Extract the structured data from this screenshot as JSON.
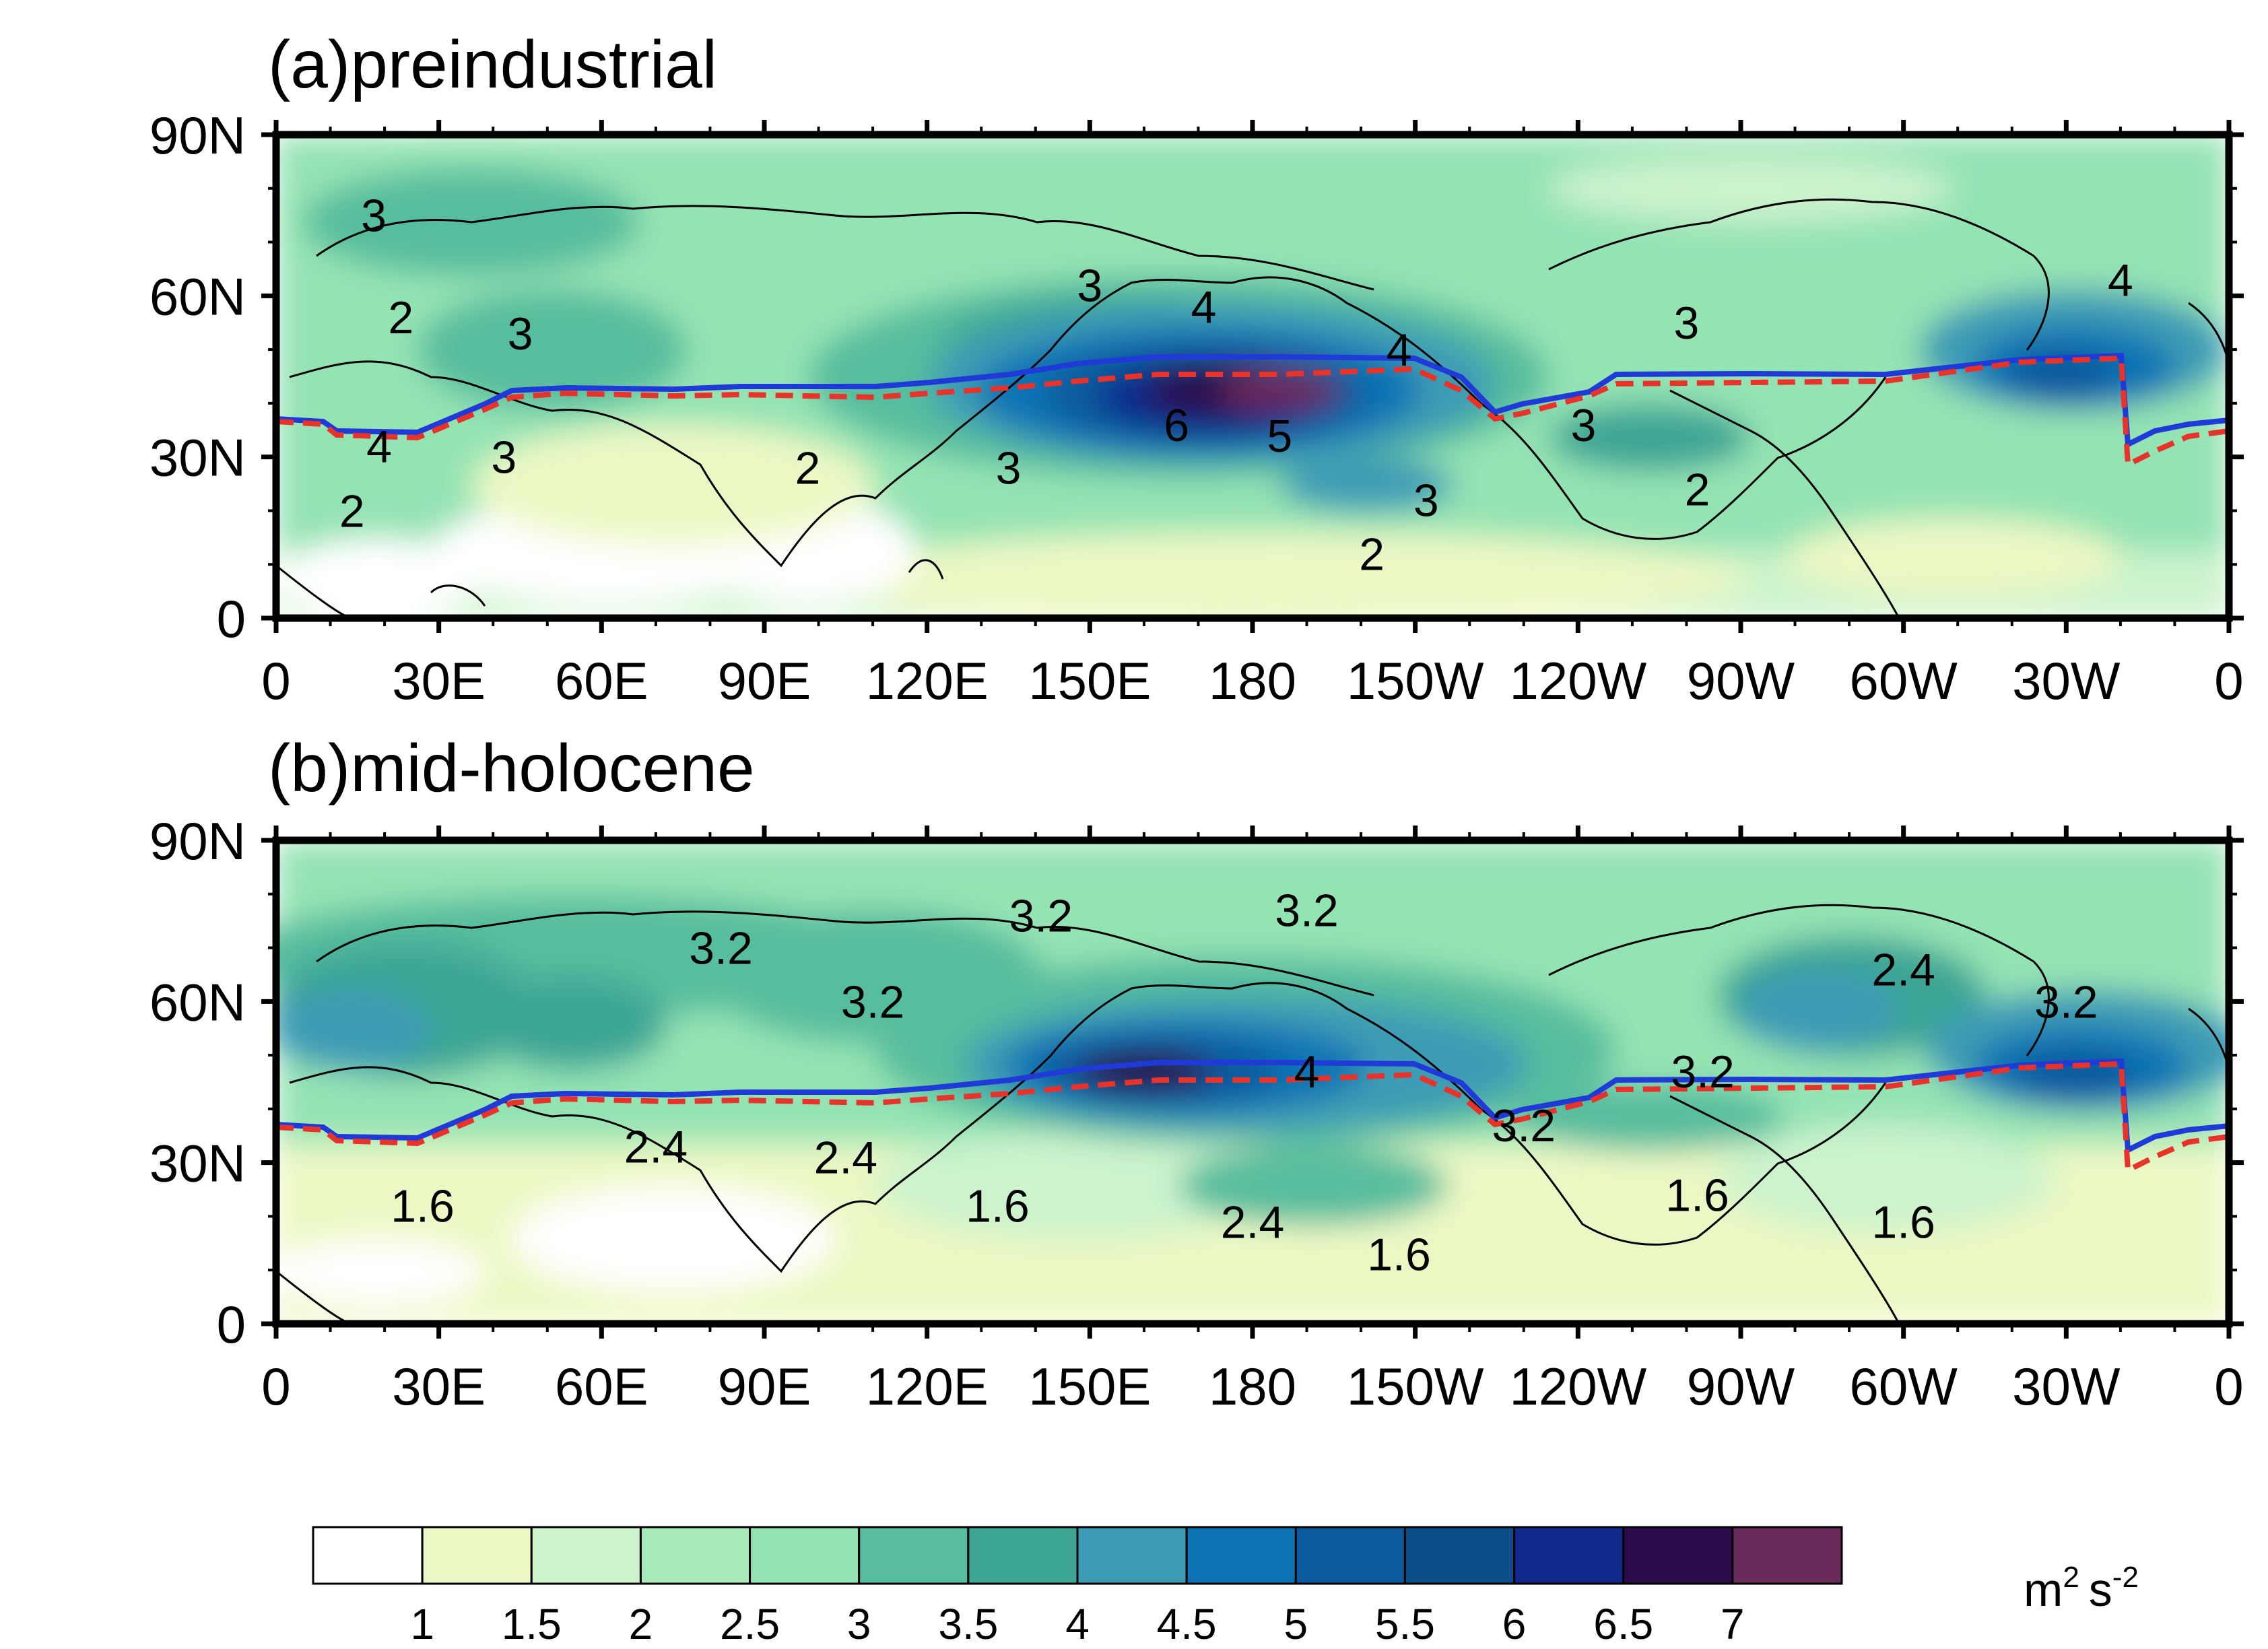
{
  "panels": [
    {
      "title": "(a)preindustrial",
      "contour_labels": [
        {
          "text": "3",
          "lon": 18,
          "lat": 75
        },
        {
          "text": "3",
          "lon": 45,
          "lat": 53
        },
        {
          "text": "4",
          "lon": 19,
          "lat": 32
        },
        {
          "text": "3",
          "lon": 42,
          "lat": 30
        },
        {
          "text": "2",
          "lon": 23,
          "lat": 56
        },
        {
          "text": "2",
          "lon": 14,
          "lat": 20
        },
        {
          "text": "3",
          "lon": 135,
          "lat": 28
        },
        {
          "text": "6",
          "lon": 166,
          "lat": 36
        },
        {
          "text": "5",
          "lon": 185,
          "lat": 34
        },
        {
          "text": "4",
          "lon": 207,
          "lat": 50
        },
        {
          "text": "3",
          "lon": 212,
          "lat": 22
        },
        {
          "text": "2",
          "lon": 202,
          "lat": 12
        },
        {
          "text": "3",
          "lon": 241,
          "lat": 36
        },
        {
          "text": "3",
          "lon": 260,
          "lat": 55
        },
        {
          "text": "2",
          "lon": 262,
          "lat": 24
        },
        {
          "text": "4",
          "lon": 340,
          "lat": 63
        },
        {
          "text": "2",
          "lon": 98,
          "lat": 28
        },
        {
          "text": "3",
          "lon": 150,
          "lat": 62
        },
        {
          "text": "4",
          "lon": 171,
          "lat": 58
        }
      ]
    },
    {
      "title": "(b)mid-holocene",
      "contour_labels": [
        {
          "text": "3.2",
          "lon": 82,
          "lat": 70
        },
        {
          "text": "3.2",
          "lon": 110,
          "lat": 60
        },
        {
          "text": "3.2",
          "lon": 141,
          "lat": 76
        },
        {
          "text": "3.2",
          "lon": 190,
          "lat": 77
        },
        {
          "text": "4",
          "lon": 190,
          "lat": 47
        },
        {
          "text": "2.4",
          "lon": 70,
          "lat": 33
        },
        {
          "text": "2.4",
          "lon": 105,
          "lat": 31
        },
        {
          "text": "1.6",
          "lon": 27,
          "lat": 22
        },
        {
          "text": "1.6",
          "lon": 133,
          "lat": 22
        },
        {
          "text": "2.4",
          "lon": 180,
          "lat": 19
        },
        {
          "text": "1.6",
          "lon": 207,
          "lat": 13
        },
        {
          "text": "3.2",
          "lon": 230,
          "lat": 37
        },
        {
          "text": "3.2",
          "lon": 263,
          "lat": 47
        },
        {
          "text": "1.6",
          "lon": 262,
          "lat": 24
        },
        {
          "text": "2.4",
          "lon": 300,
          "lat": 66
        },
        {
          "text": "3.2",
          "lon": 330,
          "lat": 60
        },
        {
          "text": "1.6",
          "lon": 300,
          "lat": 19
        }
      ]
    }
  ],
  "xticks": [
    "0",
    "30E",
    "60E",
    "90E",
    "120E",
    "150E",
    "180",
    "150W",
    "120W",
    "90W",
    "60W",
    "30W",
    "0"
  ],
  "yticks": [
    "90N",
    "60N",
    "30N",
    "0"
  ],
  "colorbar": {
    "labels": [
      "1",
      "1.5",
      "2",
      "2.5",
      "3",
      "3.5",
      "4",
      "4.5",
      "5",
      "5.5",
      "6",
      "6.5",
      "7"
    ],
    "colors": [
      "#ffffff",
      "#ecf8c4",
      "#ccf3cc",
      "#a7e9b9",
      "#94e3b3",
      "#57bd9e",
      "#3ea695",
      "#3c9cb5",
      "#0b73b4",
      "#0c5a9e",
      "#0b4f8a",
      "#0f2a8c",
      "#2b0b4b",
      "#6b2b5a"
    ],
    "unit": "m",
    "unit_power": "2",
    "unit_s": "s",
    "unit_s_power": "-2"
  },
  "line_colors": {
    "mean": "#1f3ad6",
    "dashed": "#e8332a",
    "coast": "#000000"
  }
}
